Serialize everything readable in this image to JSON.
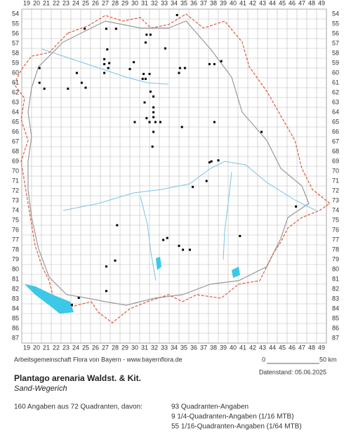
{
  "map": {
    "cols": [
      19,
      20,
      21,
      22,
      23,
      24,
      25,
      26,
      27,
      28,
      29,
      30,
      31,
      32,
      33,
      34,
      35,
      36,
      37,
      38,
      39,
      40,
      41,
      42,
      43,
      44,
      45,
      46,
      47,
      48,
      49
    ],
    "rows": [
      54,
      55,
      56,
      57,
      58,
      59,
      60,
      61,
      62,
      63,
      64,
      65,
      66,
      67,
      68,
      69,
      70,
      71,
      72,
      73,
      74,
      75,
      76,
      77,
      78,
      79,
      80,
      81,
      82,
      83,
      84,
      85,
      86,
      87
    ],
    "points": [
      [
        34.3,
        54.1
      ],
      [
        24.9,
        55.5
      ],
      [
        27.1,
        55.5
      ],
      [
        28.1,
        55.5
      ],
      [
        31.2,
        56.1
      ],
      [
        31.6,
        56.1
      ],
      [
        31.1,
        56.9
      ],
      [
        27.2,
        57.6
      ],
      [
        33.1,
        57.5
      ],
      [
        26.9,
        58.6
      ],
      [
        27.4,
        59.0
      ],
      [
        26.9,
        59.1
      ],
      [
        29.9,
        58.9
      ],
      [
        37.6,
        59.1
      ],
      [
        38.1,
        59.1
      ],
      [
        38.8,
        58.8
      ],
      [
        20.3,
        59.5
      ],
      [
        24.1,
        60.0
      ],
      [
        26.9,
        60.0
      ],
      [
        27.3,
        59.5
      ],
      [
        29.5,
        59.6
      ],
      [
        30.9,
        60.1
      ],
      [
        31.5,
        60.1
      ],
      [
        34.6,
        59.5
      ],
      [
        35.1,
        59.5
      ],
      [
        34.5,
        60.0
      ],
      [
        30.8,
        60.6
      ],
      [
        31.1,
        60.6
      ],
      [
        24.6,
        61.0
      ],
      [
        20.3,
        61.0
      ],
      [
        20.8,
        61.6
      ],
      [
        25.0,
        61.5
      ],
      [
        23.2,
        61.6
      ],
      [
        31.6,
        61.9
      ],
      [
        31.9,
        62.4
      ],
      [
        31.0,
        63.0
      ],
      [
        31.9,
        63.5
      ],
      [
        31.9,
        64.0
      ],
      [
        31.9,
        64.5
      ],
      [
        31.5,
        65.0
      ],
      [
        32.1,
        65.0
      ],
      [
        32.6,
        65.0
      ],
      [
        30.0,
        65.0
      ],
      [
        31.2,
        64.6
      ],
      [
        38.1,
        65.0
      ],
      [
        34.8,
        65.5
      ],
      [
        31.9,
        66.0
      ],
      [
        42.9,
        66.0
      ],
      [
        31.8,
        67.5
      ],
      [
        37.6,
        69.1
      ],
      [
        37.8,
        69.0
      ],
      [
        38.5,
        68.9
      ],
      [
        37.3,
        71.0
      ],
      [
        35.9,
        71.6
      ],
      [
        46.4,
        73.6
      ],
      [
        28.2,
        75.5
      ],
      [
        40.7,
        76.6
      ],
      [
        32.9,
        77.0
      ],
      [
        33.3,
        76.8
      ],
      [
        34.5,
        77.6
      ],
      [
        34.9,
        78.0
      ],
      [
        35.6,
        78.0
      ],
      [
        27.1,
        79.7
      ],
      [
        28.0,
        79.1
      ],
      [
        27.1,
        82.2
      ],
      [
        24.3,
        82.9
      ],
      [
        23.6,
        83.6
      ]
    ]
  },
  "footer": {
    "credit": "Arbeitsgemeinschaft Flora von Bayern - www.bayernflora.de",
    "scale_start": "0",
    "scale_end": "50 km",
    "date": "Datenstand: 05.06.2025"
  },
  "species": {
    "name": "Plantago arenaria Waldst. & Kit.",
    "common_name": "Sand-Wegerich"
  },
  "summary": {
    "total": "160 Angaben aus 72 Quadranten, davon:",
    "lines": [
      "93 Quadranten-Angaben",
      "9 1/4-Quadranten-Angaben (1/16 MTB)",
      "55 1/16-Quadranten-Angaben (1/64 MTB)"
    ]
  }
}
